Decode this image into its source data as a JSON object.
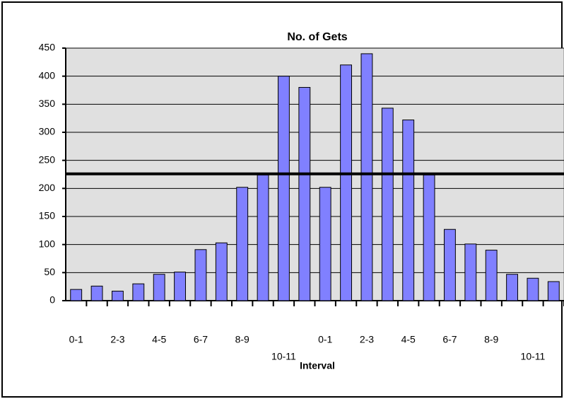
{
  "chart_data": {
    "type": "bar",
    "title": "No. of Gets",
    "x_label": "Interval",
    "categories": [
      "0-1",
      null,
      "2-3",
      null,
      "4-5",
      null,
      "6-7",
      null,
      "8-9",
      null,
      "10-11",
      null,
      "0-1",
      null,
      "2-3",
      null,
      "4-5",
      null,
      "6-7",
      null,
      "8-9",
      null,
      "10-11",
      null
    ],
    "values": [
      20,
      26,
      17,
      30,
      47,
      51,
      91,
      103,
      202,
      224,
      400,
      380,
      202,
      420,
      440,
      343,
      322,
      224,
      127,
      101,
      90,
      47,
      40,
      34
    ],
    "color": "#8080ff",
    "reference_line": 226,
    "ylim": [
      0,
      450
    ],
    "yticks": [
      0,
      50,
      100,
      150,
      200,
      250,
      300,
      350,
      400,
      450
    ],
    "grid": true
  }
}
